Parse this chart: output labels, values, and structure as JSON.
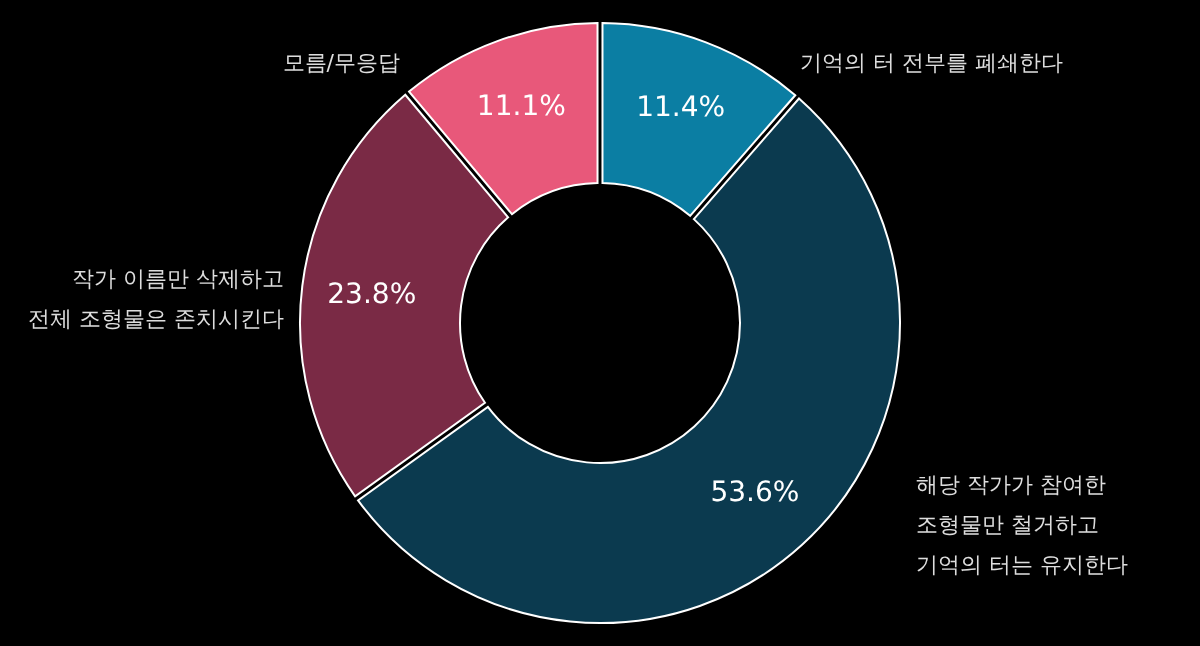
{
  "chart_data": {
    "type": "donut",
    "categories": [
      "기억의 터 전부를 폐쇄한다",
      "해당 작가가 참여한\n조형물만 철거하고\n기억의 터는 유지한다",
      "작가 이름만 삭제하고\n전체 조형물은 존치시킨다",
      "모름/무응답"
    ],
    "values": [
      11.4,
      53.6,
      23.8,
      11.1
    ],
    "colors": [
      "#0b7ea3",
      "#0b3a4f",
      "#7a2a45",
      "#e8587a"
    ],
    "value_labels": [
      "11.4%",
      "53.6%",
      "23.8%",
      "11.1%"
    ]
  }
}
